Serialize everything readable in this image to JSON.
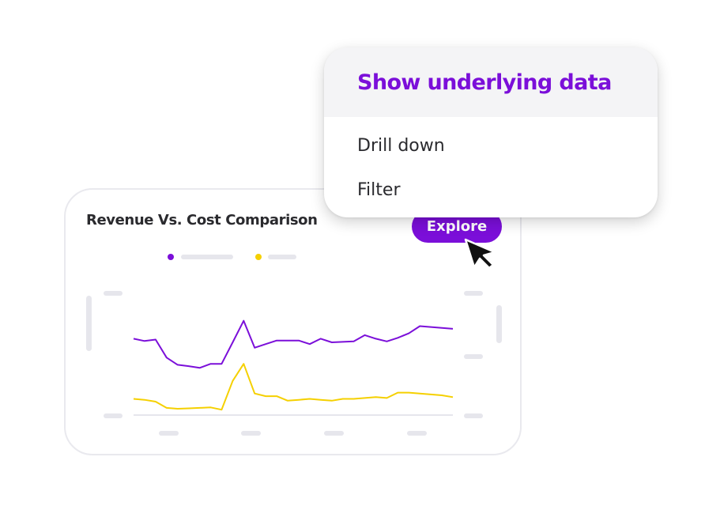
{
  "chart_card": {
    "title": "Revenue Vs. Cost Comparison",
    "explore_label": "Explore"
  },
  "menu": {
    "header": "Show underlying data",
    "items": [
      "Drill down",
      "Filter"
    ]
  },
  "colors": {
    "accent": "#7b0fd9",
    "revenue": "#7b0fd9",
    "cost": "#f5d000",
    "placeholder": "#e6e6ec"
  },
  "chart_data": {
    "type": "line",
    "title": "Revenue Vs. Cost Comparison",
    "xlabel": "",
    "ylabel": "",
    "x": [
      0,
      1,
      2,
      3,
      4,
      5,
      6,
      7,
      8,
      9,
      10,
      11,
      12,
      13,
      14,
      15,
      16,
      17,
      18,
      19,
      20,
      21,
      22,
      23,
      24,
      25,
      26,
      27,
      28,
      29
    ],
    "series": [
      {
        "color": "#7b0fd9",
        "values": [
          45,
          42.5,
          44,
          24,
          16,
          14.5,
          12.5,
          17,
          17,
          41,
          65,
          35,
          39,
          43,
          43,
          43,
          39,
          45,
          41,
          41.5,
          42,
          49,
          45,
          42,
          46,
          51,
          59,
          58,
          57,
          56
        ]
      },
      {
        "color": "#f5d000",
        "values": [
          -22,
          -23,
          -25,
          -32,
          -33,
          -32.5,
          -32,
          -31.5,
          -34,
          -2,
          17,
          -16,
          -19,
          -19,
          -24,
          -23,
          -22,
          -23,
          -24,
          -22,
          -22,
          -21,
          -20,
          -21,
          -15,
          -15,
          -16,
          -17,
          -18,
          -20
        ]
      }
    ],
    "grid": false,
    "legend": "top"
  }
}
